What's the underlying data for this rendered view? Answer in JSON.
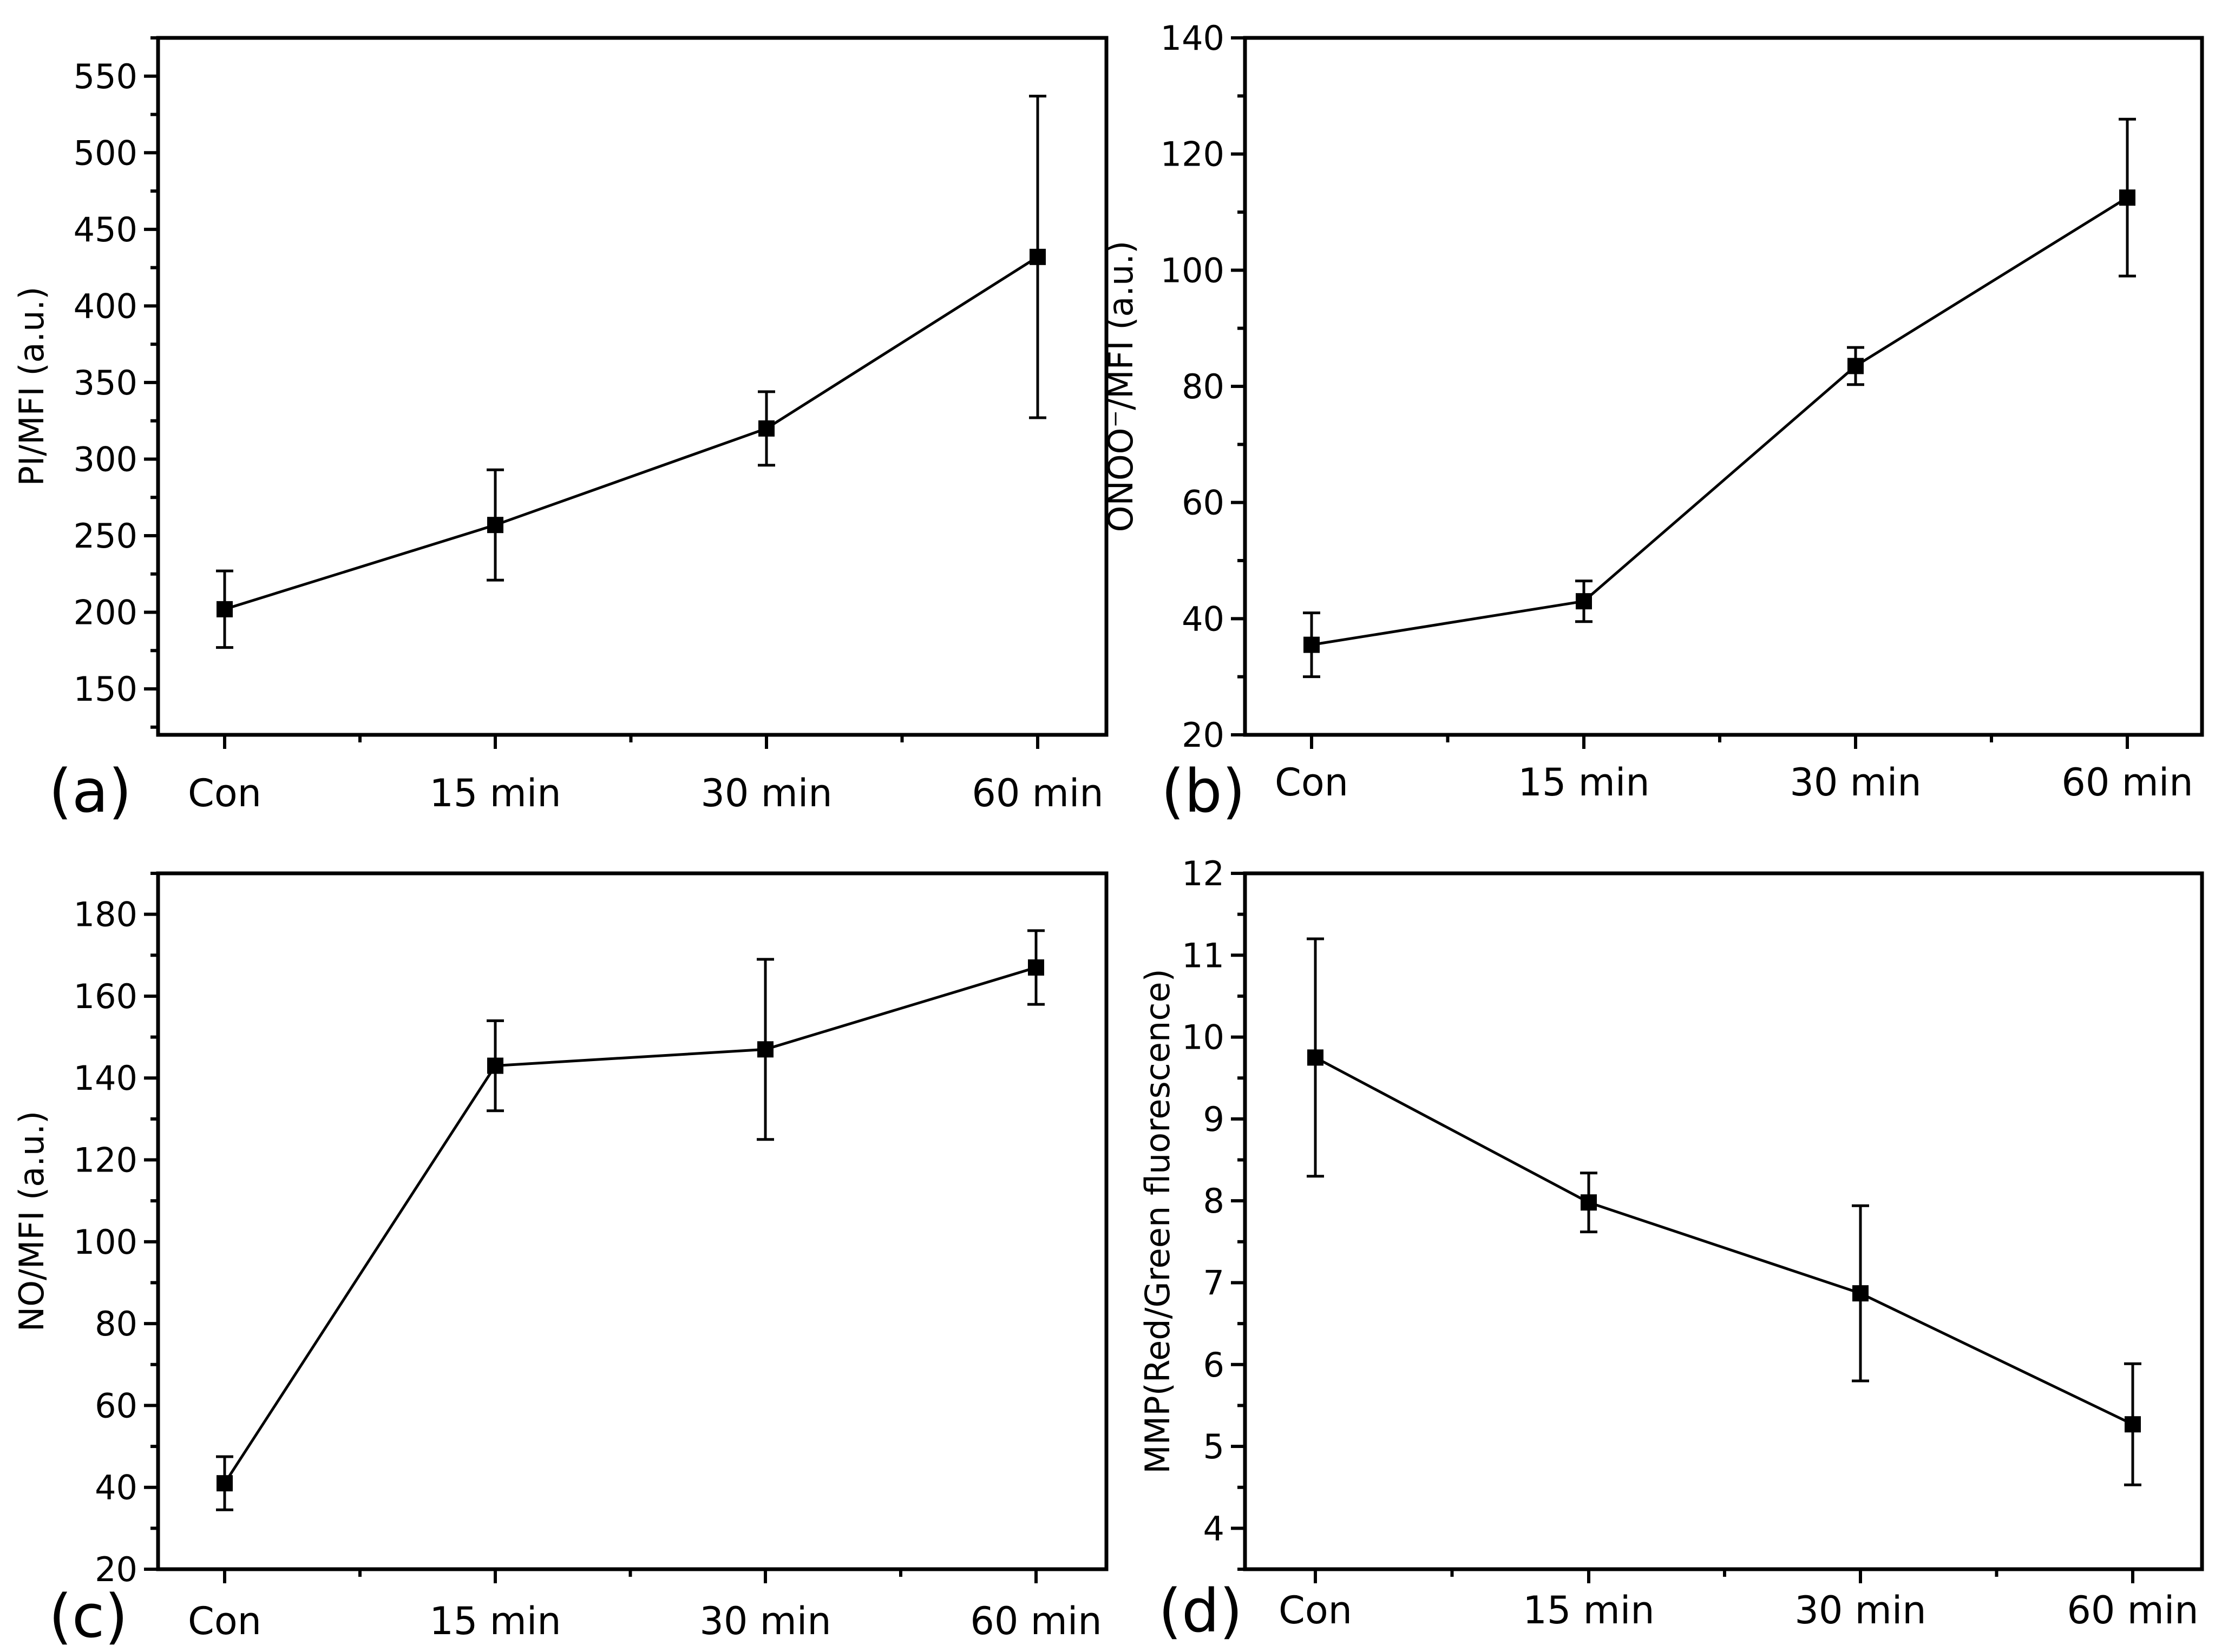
{
  "chart_data": [
    {
      "id": "a",
      "type": "line",
      "panel_label": "(a)",
      "title": "",
      "xlabel": "",
      "ylabel": "PI/MFI (a.u.)",
      "categories": [
        "Con",
        "15 min",
        "30 min",
        "60 min"
      ],
      "series": [
        {
          "name": "PI/MFI",
          "values": [
            202,
            257,
            320,
            432
          ],
          "errors": [
            25,
            36,
            24,
            105
          ]
        }
      ],
      "ylim": [
        120,
        575
      ],
      "yticks": [
        150,
        200,
        250,
        300,
        350,
        400,
        450,
        500,
        550
      ],
      "yminor": 25,
      "grid": false
    },
    {
      "id": "b",
      "type": "line",
      "panel_label": "(b)",
      "title": "",
      "xlabel": "",
      "ylabel": "ONOO⁻/MFI (a.u.)",
      "categories": [
        "Con",
        "15 min",
        "30 min",
        "60 min"
      ],
      "series": [
        {
          "name": "ONOO⁻/MFI",
          "values": [
            35.5,
            43,
            83.5,
            112.5
          ],
          "errors": [
            5.5,
            3.5,
            3.2,
            13.5
          ]
        }
      ],
      "ylim": [
        20,
        140
      ],
      "yticks": [
        20,
        40,
        60,
        80,
        100,
        120,
        140
      ],
      "yminor": 10,
      "grid": false
    },
    {
      "id": "c",
      "type": "line",
      "panel_label": "(c)",
      "title": "",
      "xlabel": "",
      "ylabel": "NO/MFI (a.u.)",
      "categories": [
        "Con",
        "15 min",
        "30 min",
        "60 min"
      ],
      "series": [
        {
          "name": "NO/MFI",
          "values": [
            41,
            143,
            147,
            167
          ],
          "errors": [
            6.5,
            11,
            22,
            9
          ]
        }
      ],
      "ylim": [
        20,
        190
      ],
      "yticks": [
        20,
        40,
        60,
        80,
        100,
        120,
        140,
        160,
        180
      ],
      "yminor": 10,
      "grid": false
    },
    {
      "id": "d",
      "type": "line",
      "panel_label": "(d)",
      "title": "",
      "xlabel": "",
      "ylabel": "MMP(Red/Green fluorescence)",
      "categories": [
        "Con",
        "15 min",
        "30 min",
        "60 min"
      ],
      "series": [
        {
          "name": "MMP",
          "values": [
            9.75,
            7.98,
            6.87,
            5.27
          ],
          "errors": [
            1.45,
            0.36,
            1.07,
            0.74
          ]
        }
      ],
      "ylim": [
        3.5,
        12
      ],
      "yticks": [
        4,
        5,
        6,
        7,
        8,
        9,
        10,
        11,
        12
      ],
      "yminor": 0.5,
      "grid": false
    }
  ]
}
